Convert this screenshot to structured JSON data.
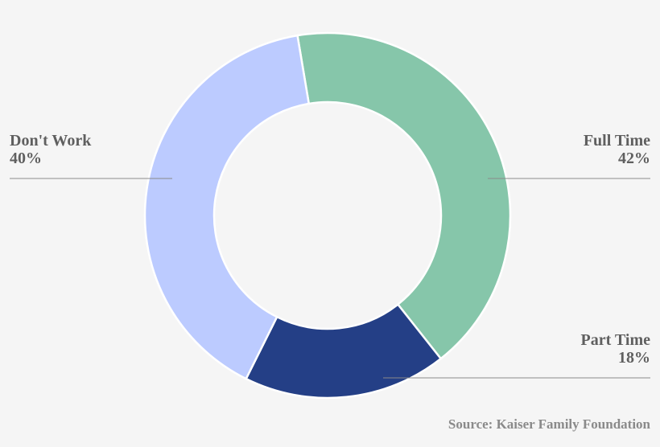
{
  "chart_data": {
    "type": "pie",
    "donut": true,
    "categories": [
      "Full Time",
      "Part Time",
      "Don't Work"
    ],
    "values": [
      42,
      18,
      40
    ],
    "value_labels": [
      "42%",
      "18%",
      "40%"
    ],
    "colors": [
      "#86c6aa",
      "#243f86",
      "#bccbff"
    ],
    "start_angle_deg": -9.5,
    "legend": "none",
    "source": "Source: Kaiser Family Foundation"
  },
  "colors": {
    "background": "#f5f5f5",
    "text": "#5f5f5f",
    "leader_line": "#8a8a8a"
  }
}
